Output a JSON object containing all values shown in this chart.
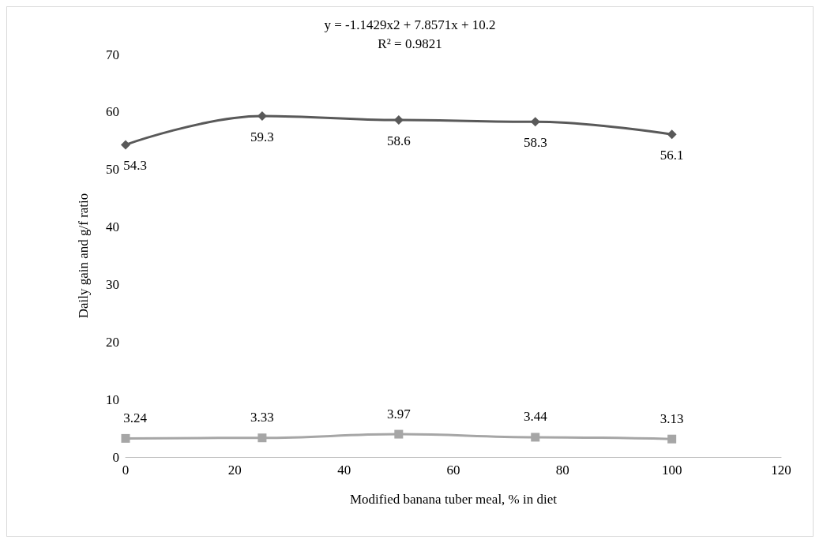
{
  "chart_data": {
    "type": "line",
    "xlabel": "Modified banana tuber meal, % in diet",
    "ylabel": "Daily gain and g/f ratio",
    "annotations": [
      "y = -1.1429x2 + 7.8571x + 10.2",
      "R² = 0.9821"
    ],
    "x": [
      0,
      25,
      50,
      75,
      100
    ],
    "series": [
      {
        "color": "#595959",
        "marker": "diamond",
        "values": [
          54.3,
          59.3,
          58.6,
          58.3,
          56.1
        ]
      },
      {
        "color": "#a6a6a6",
        "marker": "square",
        "values": [
          3.24,
          3.33,
          3.97,
          3.44,
          3.13
        ]
      }
    ],
    "xlim": [
      0,
      120
    ],
    "xticks": [
      0,
      20,
      40,
      60,
      80,
      100,
      120
    ],
    "ylim": [
      0,
      70
    ],
    "yticks": [
      0,
      10,
      20,
      30,
      40,
      50,
      60,
      70
    ],
    "grid": false,
    "data_labels": true,
    "line_style": "solid"
  }
}
